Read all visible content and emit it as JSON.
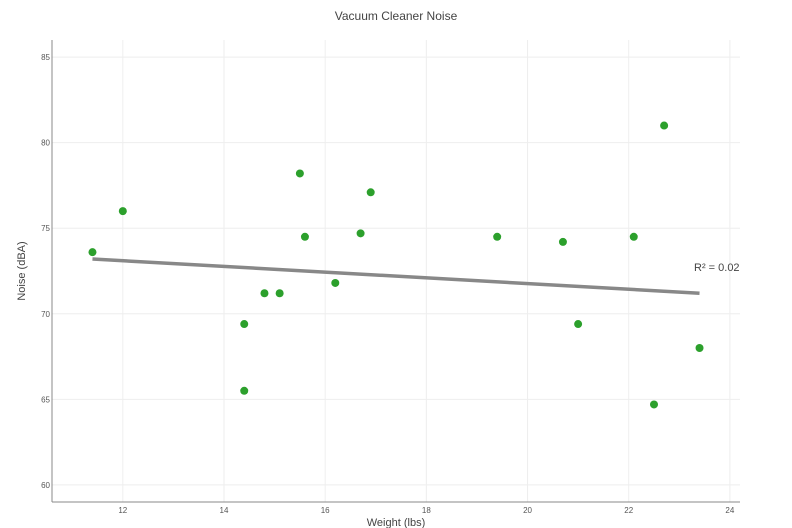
{
  "chart_data": {
    "type": "scatter",
    "title": "Vacuum Cleaner Noise",
    "xlabel": "Weight (lbs)",
    "ylabel": "Noise (dBA)",
    "xlim": [
      10.6,
      24.2
    ],
    "ylim": [
      59,
      86
    ],
    "xticks": [
      12,
      14,
      16,
      18,
      20,
      22,
      24
    ],
    "yticks": [
      60,
      65,
      70,
      75,
      80,
      85
    ],
    "grid": true,
    "point_color": "#2ca02c",
    "trend_color": "#888888",
    "points": [
      {
        "x": 11.4,
        "y": 73.6
      },
      {
        "x": 12.0,
        "y": 76.0
      },
      {
        "x": 14.4,
        "y": 69.4
      },
      {
        "x": 14.4,
        "y": 65.5
      },
      {
        "x": 14.8,
        "y": 71.2
      },
      {
        "x": 15.1,
        "y": 71.2
      },
      {
        "x": 15.5,
        "y": 78.2
      },
      {
        "x": 15.6,
        "y": 74.5
      },
      {
        "x": 16.2,
        "y": 71.8
      },
      {
        "x": 16.7,
        "y": 74.7
      },
      {
        "x": 16.9,
        "y": 77.1
      },
      {
        "x": 19.4,
        "y": 74.5
      },
      {
        "x": 20.7,
        "y": 74.2
      },
      {
        "x": 21.0,
        "y": 69.4
      },
      {
        "x": 22.1,
        "y": 74.5
      },
      {
        "x": 22.5,
        "y": 64.7
      },
      {
        "x": 22.7,
        "y": 81.0
      },
      {
        "x": 23.4,
        "y": 68.0
      }
    ],
    "trendline": {
      "x": [
        11.4,
        23.4
      ],
      "y": [
        73.2,
        71.2
      ]
    },
    "r2_label": "R² = 0.02"
  }
}
